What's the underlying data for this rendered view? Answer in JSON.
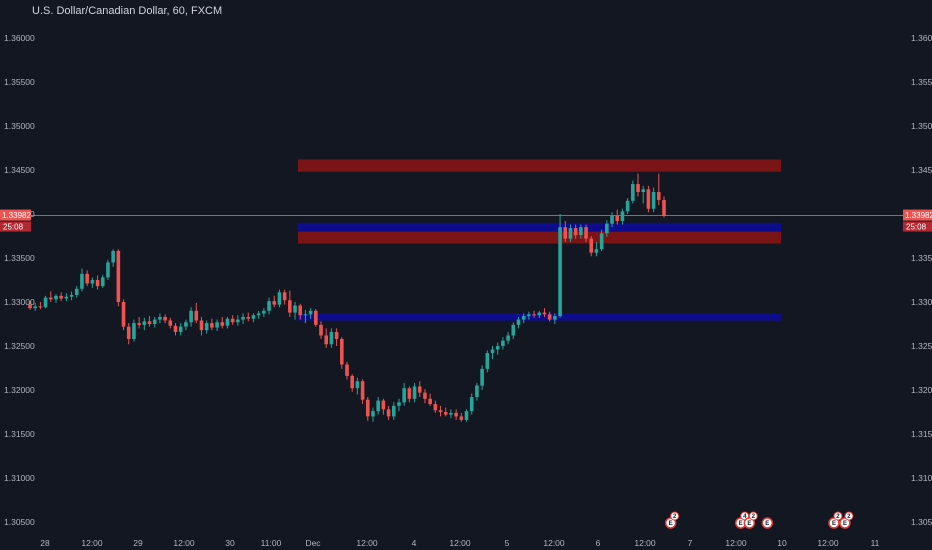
{
  "chart_data": {
    "type": "candlestick",
    "title": "U.S. Dollar/Canadian Dollar, 60, FXCM",
    "y_ticks": [
      "1.36000",
      "1.35500",
      "1.35000",
      "1.34500",
      "1.34000",
      "1.33500",
      "1.33000",
      "1.32500",
      "1.32000",
      "1.31500",
      "1.31000",
      "1.30500"
    ],
    "x_ticks": [
      "28",
      "12:00",
      "29",
      "12:00",
      "30",
      "11:00",
      "Dec",
      "12:00",
      "4",
      "12:00",
      "5",
      "12:00",
      "6",
      "12:00",
      "7",
      "12:00",
      "10",
      "12:00",
      "11"
    ],
    "ylim": [
      1.3036,
      1.3621
    ],
    "grid": false,
    "last_price": "1.33982",
    "countdown": "25:08",
    "colors": {
      "up": "#26a69a",
      "down": "#ef5350",
      "bg": "#131722",
      "supply": "#7b1416",
      "demand": "#0d0d8c",
      "price_line": "#ef5350"
    },
    "zones": [
      {
        "kind": "supply",
        "from": 1.3448,
        "to": 1.3462
      },
      {
        "kind": "demand",
        "from": 1.33805,
        "to": 1.339
      },
      {
        "kind": "supply",
        "from": 1.33665,
        "to": 1.338
      },
      {
        "kind": "demand",
        "from": 1.32788,
        "to": 1.3287
      }
    ],
    "candles": [
      [
        1.3297,
        1.3301,
        1.3291,
        1.3293
      ],
      [
        1.3293,
        1.3299,
        1.329,
        1.3295
      ],
      [
        1.3295,
        1.33,
        1.3292,
        1.3294
      ],
      [
        1.3294,
        1.3307,
        1.3293,
        1.3305
      ],
      [
        1.3305,
        1.3312,
        1.33,
        1.3303
      ],
      [
        1.3303,
        1.3309,
        1.3299,
        1.3307
      ],
      [
        1.3307,
        1.3311,
        1.3301,
        1.3304
      ],
      [
        1.3304,
        1.331,
        1.3301,
        1.3306
      ],
      [
        1.3306,
        1.3312,
        1.3302,
        1.3308
      ],
      [
        1.3308,
        1.3318,
        1.3305,
        1.3315
      ],
      [
        1.3315,
        1.3338,
        1.3312,
        1.3332
      ],
      [
        1.3332,
        1.3336,
        1.3318,
        1.3321
      ],
      [
        1.3321,
        1.3328,
        1.3316,
        1.3325
      ],
      [
        1.3325,
        1.333,
        1.3314,
        1.3318
      ],
      [
        1.3318,
        1.3331,
        1.3316,
        1.3328
      ],
      [
        1.3328,
        1.3348,
        1.3325,
        1.3345
      ],
      [
        1.3345,
        1.336,
        1.334,
        1.3358
      ],
      [
        1.3358,
        1.336,
        1.3295,
        1.33
      ],
      [
        1.33,
        1.3303,
        1.3268,
        1.3272
      ],
      [
        1.3272,
        1.3276,
        1.3252,
        1.3258
      ],
      [
        1.3258,
        1.328,
        1.3255,
        1.3276
      ],
      [
        1.3276,
        1.3283,
        1.327,
        1.3274
      ],
      [
        1.3274,
        1.3282,
        1.3268,
        1.3278
      ],
      [
        1.3278,
        1.3284,
        1.3272,
        1.3275
      ],
      [
        1.3275,
        1.3283,
        1.3271,
        1.328
      ],
      [
        1.328,
        1.3287,
        1.3276,
        1.3283
      ],
      [
        1.3283,
        1.3286,
        1.3276,
        1.3279
      ],
      [
        1.3279,
        1.3282,
        1.327,
        1.3273
      ],
      [
        1.3273,
        1.3276,
        1.3262,
        1.3266
      ],
      [
        1.3266,
        1.3276,
        1.3262,
        1.3272
      ],
      [
        1.3272,
        1.328,
        1.3268,
        1.3277
      ],
      [
        1.3277,
        1.3294,
        1.3272,
        1.329
      ],
      [
        1.329,
        1.3299,
        1.3276,
        1.3279
      ],
      [
        1.3279,
        1.3283,
        1.3262,
        1.3268
      ],
      [
        1.3268,
        1.3279,
        1.3264,
        1.3276
      ],
      [
        1.3276,
        1.3281,
        1.3268,
        1.3271
      ],
      [
        1.3271,
        1.328,
        1.3267,
        1.3277
      ],
      [
        1.3277,
        1.3283,
        1.327,
        1.3273
      ],
      [
        1.3273,
        1.3283,
        1.327,
        1.3281
      ],
      [
        1.3281,
        1.3285,
        1.3274,
        1.3277
      ],
      [
        1.3277,
        1.3285,
        1.3273,
        1.328
      ],
      [
        1.328,
        1.3287,
        1.3275,
        1.3283
      ],
      [
        1.3283,
        1.3288,
        1.3278,
        1.3281
      ],
      [
        1.3281,
        1.3287,
        1.3277,
        1.3285
      ],
      [
        1.3285,
        1.329,
        1.3281,
        1.3287
      ],
      [
        1.3287,
        1.3293,
        1.3283,
        1.329
      ],
      [
        1.329,
        1.3305,
        1.3286,
        1.3301
      ],
      [
        1.3301,
        1.3307,
        1.3294,
        1.3297
      ],
      [
        1.3297,
        1.3314,
        1.3294,
        1.3311
      ],
      [
        1.3311,
        1.3314,
        1.3297,
        1.3302
      ],
      [
        1.3302,
        1.3313,
        1.3283,
        1.3288
      ],
      [
        1.3288,
        1.33,
        1.328,
        1.3296
      ],
      [
        1.3296,
        1.3298,
        1.328,
        1.3285
      ],
      [
        1.3285,
        1.3291,
        1.3276,
        1.3286
      ],
      [
        1.3286,
        1.3293,
        1.3281,
        1.329
      ],
      [
        1.329,
        1.3292,
        1.3272,
        1.3274
      ],
      [
        1.3274,
        1.3278,
        1.3258,
        1.3262
      ],
      [
        1.3262,
        1.327,
        1.3248,
        1.3252
      ],
      [
        1.3252,
        1.327,
        1.3248,
        1.3266
      ],
      [
        1.3266,
        1.327,
        1.325,
        1.3258
      ],
      [
        1.3258,
        1.326,
        1.3224,
        1.3229
      ],
      [
        1.3229,
        1.3232,
        1.3212,
        1.3216
      ],
      [
        1.3216,
        1.3218,
        1.3198,
        1.3202
      ],
      [
        1.3202,
        1.3214,
        1.3195,
        1.321
      ],
      [
        1.321,
        1.3212,
        1.3184,
        1.3189
      ],
      [
        1.3189,
        1.3192,
        1.3165,
        1.317
      ],
      [
        1.317,
        1.318,
        1.3164,
        1.3176
      ],
      [
        1.3176,
        1.3192,
        1.3172,
        1.3188
      ],
      [
        1.3188,
        1.319,
        1.3172,
        1.3178
      ],
      [
        1.3178,
        1.3182,
        1.3166,
        1.317
      ],
      [
        1.317,
        1.3186,
        1.3166,
        1.3182
      ],
      [
        1.3182,
        1.319,
        1.3176,
        1.3186
      ],
      [
        1.3186,
        1.3208,
        1.3182,
        1.3202
      ],
      [
        1.3202,
        1.3204,
        1.3186,
        1.319
      ],
      [
        1.319,
        1.3208,
        1.3186,
        1.3204
      ],
      [
        1.3204,
        1.321,
        1.3192,
        1.3197
      ],
      [
        1.3197,
        1.3201,
        1.3185,
        1.319
      ],
      [
        1.319,
        1.3196,
        1.3182,
        1.3184
      ],
      [
        1.3184,
        1.3188,
        1.3174,
        1.3177
      ],
      [
        1.3177,
        1.3182,
        1.317,
        1.3175
      ],
      [
        1.3175,
        1.318,
        1.317,
        1.3172
      ],
      [
        1.3172,
        1.3178,
        1.3168,
        1.3174
      ],
      [
        1.3174,
        1.3178,
        1.3166,
        1.317
      ],
      [
        1.317,
        1.3174,
        1.3164,
        1.3166
      ],
      [
        1.3166,
        1.3178,
        1.3164,
        1.3176
      ],
      [
        1.3176,
        1.3196,
        1.3172,
        1.3192
      ],
      [
        1.3192,
        1.3208,
        1.3188,
        1.3205
      ],
      [
        1.3205,
        1.3228,
        1.32,
        1.3224
      ],
      [
        1.3224,
        1.3245,
        1.322,
        1.3242
      ],
      [
        1.3242,
        1.325,
        1.3235,
        1.3246
      ],
      [
        1.3246,
        1.3254,
        1.324,
        1.325
      ],
      [
        1.325,
        1.326,
        1.3246,
        1.3256
      ],
      [
        1.3256,
        1.3266,
        1.3252,
        1.3262
      ],
      [
        1.3262,
        1.3277,
        1.3258,
        1.3274
      ],
      [
        1.3274,
        1.3283,
        1.327,
        1.328
      ],
      [
        1.328,
        1.3287,
        1.3276,
        1.3284
      ],
      [
        1.3284,
        1.3289,
        1.328,
        1.3286
      ],
      [
        1.3286,
        1.329,
        1.3282,
        1.3285
      ],
      [
        1.3285,
        1.329,
        1.3282,
        1.3288
      ],
      [
        1.3288,
        1.3293,
        1.3283,
        1.3286
      ],
      [
        1.3286,
        1.3289,
        1.3278,
        1.328
      ],
      [
        1.328,
        1.3287,
        1.3275,
        1.3284
      ],
      [
        1.3284,
        1.34,
        1.3282,
        1.3385
      ],
      [
        1.3385,
        1.3392,
        1.3368,
        1.3372
      ],
      [
        1.3372,
        1.3388,
        1.3368,
        1.3384
      ],
      [
        1.3384,
        1.3388,
        1.3372,
        1.3376
      ],
      [
        1.3376,
        1.3388,
        1.3372,
        1.3385
      ],
      [
        1.3385,
        1.3388,
        1.3368,
        1.3372
      ],
      [
        1.3372,
        1.3375,
        1.3352,
        1.3356
      ],
      [
        1.3356,
        1.3368,
        1.3352,
        1.336
      ],
      [
        1.336,
        1.3382,
        1.3358,
        1.3378
      ],
      [
        1.3378,
        1.3393,
        1.3374,
        1.3389
      ],
      [
        1.3389,
        1.3402,
        1.3385,
        1.3398
      ],
      [
        1.3398,
        1.3405,
        1.3388,
        1.3392
      ],
      [
        1.3392,
        1.3406,
        1.3388,
        1.3403
      ],
      [
        1.3403,
        1.3418,
        1.34,
        1.3415
      ],
      [
        1.3415,
        1.3438,
        1.3412,
        1.3434
      ],
      [
        1.3434,
        1.3446,
        1.342,
        1.3425
      ],
      [
        1.3425,
        1.3432,
        1.3412,
        1.3428
      ],
      [
        1.3428,
        1.3432,
        1.3402,
        1.3406
      ],
      [
        1.3406,
        1.343,
        1.3402,
        1.3425
      ],
      [
        1.3425,
        1.3446,
        1.341,
        1.3416
      ],
      [
        1.3416,
        1.342,
        1.3396,
        1.3398
      ]
    ],
    "events": [
      {
        "symbol": "E",
        "x_frac": 0.7196,
        "stack": [
          "2"
        ]
      },
      {
        "symbol": "E",
        "x_frac": 0.7948,
        "stack": [
          "4"
        ]
      },
      {
        "symbol": "E",
        "x_frac": 0.804,
        "stack": [
          "2"
        ]
      },
      {
        "symbol": "E",
        "x_frac": 0.8233,
        "stack": []
      },
      {
        "symbol": "E",
        "x_frac": 0.8948,
        "stack": [
          "2"
        ]
      },
      {
        "symbol": "E",
        "x_frac": 0.9066,
        "stack": [
          "2"
        ]
      }
    ]
  }
}
